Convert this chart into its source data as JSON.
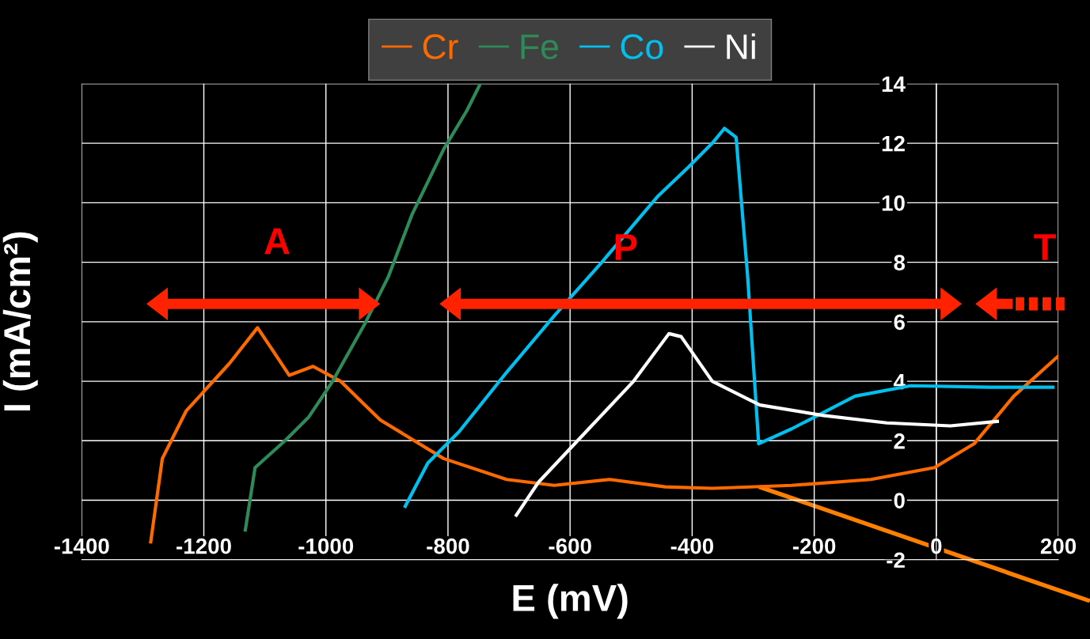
{
  "chart_data": {
    "type": "line",
    "xlabel": "E (mV)",
    "ylabel": "I (mA/cm²)",
    "xlim": [
      -1400,
      200
    ],
    "xticks": [
      -1400,
      -1200,
      -1000,
      -800,
      -600,
      -400,
      -200,
      0,
      200
    ],
    "ylim": [
      -2,
      14
    ],
    "yticks": [
      -2,
      0,
      2,
      4,
      6,
      8,
      10,
      12,
      14
    ],
    "grid": true,
    "legend": "top",
    "marker": "none",
    "line_style": "solid",
    "annotations": [
      "A",
      "P",
      "T"
    ],
    "series": [
      {
        "name": "Cr",
        "color": "#ff6a00",
        "x": [
          -1287,
          -1268,
          -1229,
          -1158,
          -1112,
          -1086,
          -1060,
          -1021,
          -976,
          -911,
          -807,
          -704,
          -626,
          -535,
          -444,
          -367,
          -237,
          -107,
          -3,
          62,
          127,
          200
        ],
        "values": [
          -1.4,
          1.4,
          3.0,
          4.6,
          5.8,
          5.0,
          4.2,
          4.5,
          4.0,
          2.7,
          1.4,
          0.7,
          0.5,
          0.7,
          0.45,
          0.4,
          0.5,
          0.7,
          1.1,
          1.9,
          3.5,
          4.85
        ]
      },
      {
        "name": "Fe",
        "color": "#2e8b57",
        "x": [
          -1132,
          -1116,
          -1067,
          -1028,
          -989,
          -937,
          -898,
          -859,
          -807,
          -769,
          -747
        ],
        "values": [
          -1.0,
          1.1,
          2.0,
          2.8,
          4.0,
          5.9,
          7.5,
          9.6,
          11.8,
          13.1,
          14.0
        ]
      },
      {
        "name": "Co",
        "color": "#00c0f0",
        "x": [
          -870,
          -833,
          -782,
          -704,
          -626,
          -548,
          -457,
          -406,
          -367,
          -347,
          -328,
          -309,
          -291,
          -237,
          -133,
          -42,
          87,
          191
        ],
        "values": [
          -0.2,
          1.25,
          2.3,
          4.3,
          6.2,
          8.0,
          10.2,
          11.2,
          12.0,
          12.5,
          12.2,
          7.5,
          1.9,
          2.4,
          3.5,
          3.85,
          3.8,
          3.8
        ]
      },
      {
        "name": "Ni",
        "color": "#ffffff",
        "x": [
          -688,
          -652,
          -574,
          -496,
          -438,
          -418,
          -367,
          -289,
          -185,
          -81,
          23,
          100
        ],
        "values": [
          -0.5,
          0.6,
          2.3,
          4.0,
          5.6,
          5.5,
          4.0,
          3.2,
          2.85,
          2.6,
          2.5,
          2.65
        ]
      }
    ]
  }
}
